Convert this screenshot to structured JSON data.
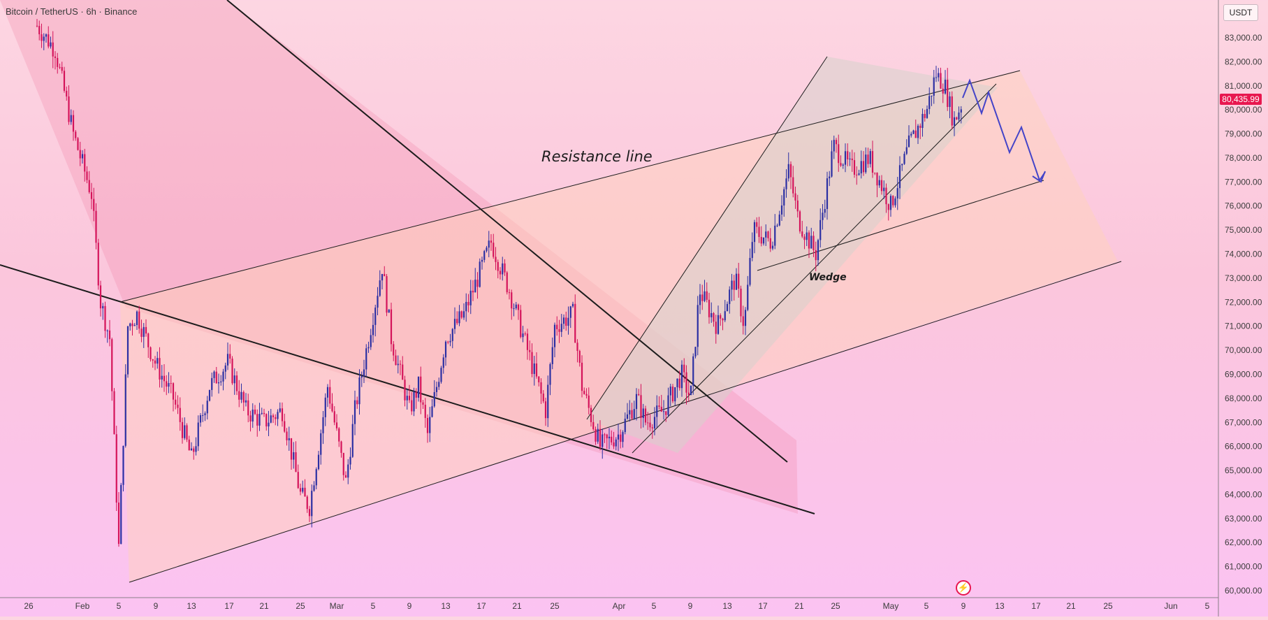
{
  "header": {
    "title": "Bitcoin / TetherUS · 6h · Binance",
    "currency": "USDT"
  },
  "price_tag": "80,435.99",
  "colors": {
    "bull": "#2b2fa3",
    "bear": "#d4135a",
    "price_tag_bg": "#e8174f",
    "projection": "#4444c8"
  },
  "icons": {
    "spark": "lightning-icon"
  },
  "chart_data": {
    "type": "candlestick",
    "title": "Bitcoin / TetherUS · 6h · Binance",
    "ylim": [
      59500,
      84000
    ],
    "y_ticks": [
      "60,000.00",
      "61,000.00",
      "62,000.00",
      "63,000.00",
      "64,000.00",
      "65,000.00",
      "66,000.00",
      "67,000.00",
      "68,000.00",
      "69,000.00",
      "70,000.00",
      "71,000.00",
      "72,000.00",
      "73,000.00",
      "74,000.00",
      "75,000.00",
      "76,000.00",
      "77,000.00",
      "78,000.00",
      "79,000.00",
      "80,000.00",
      "81,000.00",
      "82,000.00",
      "83,000.00"
    ],
    "x_ticks": [
      "26",
      "Feb",
      "5",
      "9",
      "13",
      "17",
      "21",
      "25",
      "Mar",
      "5",
      "9",
      "13",
      "17",
      "21",
      "25",
      "Apr",
      "5",
      "9",
      "13",
      "17",
      "21",
      "25",
      "May",
      "5",
      "9",
      "13",
      "17",
      "21",
      "25",
      "Jun",
      "5"
    ],
    "last_price": 80435.99,
    "annotations": [
      "Resistance line",
      "Wedge"
    ],
    "close_path": [
      [
        "Jan 27",
        83500
      ],
      [
        "Jan 29",
        82500
      ],
      [
        "Jan 31",
        79000
      ],
      [
        "Feb 2",
        76500
      ],
      [
        "Feb 3",
        72000
      ],
      [
        "Feb 4",
        70500
      ],
      [
        "Feb 5",
        61800
      ],
      [
        "Feb 6",
        71000
      ],
      [
        "Feb 7",
        71500
      ],
      [
        "Feb 9",
        69500
      ],
      [
        "Feb 11",
        68000
      ],
      [
        "Feb 13",
        65500
      ],
      [
        "Feb 15",
        68500
      ],
      [
        "Feb 17",
        69500
      ],
      [
        "Feb 19",
        67500
      ],
      [
        "Feb 21",
        67000
      ],
      [
        "Feb 23",
        67500
      ],
      [
        "Feb 25",
        64000
      ],
      [
        "Feb 26",
        63500
      ],
      [
        "Feb 28",
        68500
      ],
      [
        "Mar 1",
        66500
      ],
      [
        "Mar 2",
        64500
      ],
      [
        "Mar 3",
        67500
      ],
      [
        "Mar 4",
        69500
      ],
      [
        "Mar 6",
        73500
      ],
      [
        "Mar 7",
        70500
      ],
      [
        "Mar 9",
        67500
      ],
      [
        "Mar 10",
        68500
      ],
      [
        "Mar 11",
        66500
      ],
      [
        "Mar 13",
        70500
      ],
      [
        "Mar 15",
        71500
      ],
      [
        "Mar 17",
        73500
      ],
      [
        "Mar 18",
        74500
      ],
      [
        "Mar 20",
        72500
      ],
      [
        "Mar 22",
        70000
      ],
      [
        "Mar 24",
        67500
      ],
      [
        "Mar 25",
        71000
      ],
      [
        "Mar 27",
        71500
      ],
      [
        "Mar 28",
        68500
      ],
      [
        "Mar 30",
        66000
      ],
      [
        "Apr 1",
        66500
      ],
      [
        "Apr 3",
        68000
      ],
      [
        "Apr 4",
        67000
      ],
      [
        "Apr 6",
        67500
      ],
      [
        "Apr 8",
        69000
      ],
      [
        "Apr 9",
        68000
      ],
      [
        "Apr 10",
        72500
      ],
      [
        "Apr 12",
        71000
      ],
      [
        "Apr 14",
        73000
      ],
      [
        "Apr 15",
        71000
      ],
      [
        "Apr 16",
        75000
      ],
      [
        "Apr 18",
        74500
      ],
      [
        "Apr 20",
        77500
      ],
      [
        "Apr 21",
        75500
      ],
      [
        "Apr 23",
        74000
      ],
      [
        "Apr 25",
        78500
      ],
      [
        "Apr 27",
        77500
      ],
      [
        "Apr 29",
        78000
      ],
      [
        "May 1",
        76000
      ],
      [
        "May 3",
        78500
      ],
      [
        "May 5",
        80000
      ],
      [
        "May 6",
        81500
      ],
      [
        "May 7",
        81000
      ],
      [
        "May 8",
        79500
      ],
      [
        "May 9",
        80400
      ]
    ]
  }
}
